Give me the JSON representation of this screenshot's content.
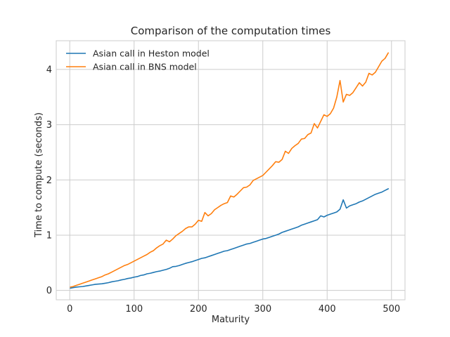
{
  "chart_data": {
    "type": "line",
    "title": "Comparison of the computation times",
    "xlabel": "Maturity",
    "ylabel": "Time to compute (seconds)",
    "xlim": [
      -21,
      521
    ],
    "ylim": [
      -0.17,
      4.52
    ],
    "xticks": [
      0,
      100,
      200,
      300,
      400,
      500
    ],
    "yticks": [
      0,
      1,
      2,
      3,
      4
    ],
    "grid": true,
    "legend_position": "top-left",
    "series": [
      {
        "name": "Asian call in Heston model",
        "color": "#1f77b4",
        "x": [
          1,
          5,
          10,
          15,
          20,
          25,
          30,
          35,
          40,
          45,
          50,
          55,
          60,
          65,
          70,
          75,
          80,
          85,
          90,
          95,
          100,
          105,
          110,
          115,
          120,
          125,
          130,
          135,
          140,
          145,
          150,
          155,
          160,
          165,
          170,
          175,
          180,
          185,
          190,
          195,
          200,
          205,
          210,
          215,
          220,
          225,
          230,
          235,
          240,
          245,
          250,
          255,
          260,
          265,
          270,
          275,
          280,
          285,
          290,
          295,
          300,
          305,
          310,
          315,
          320,
          325,
          330,
          335,
          340,
          345,
          350,
          355,
          360,
          365,
          370,
          375,
          380,
          385,
          390,
          395,
          400,
          405,
          410,
          415,
          420,
          425,
          430,
          435,
          440,
          445,
          450,
          455,
          460,
          465,
          470,
          475,
          480,
          485,
          490,
          495
        ],
        "y": [
          0.04,
          0.05,
          0.06,
          0.065,
          0.07,
          0.08,
          0.09,
          0.1,
          0.11,
          0.115,
          0.12,
          0.13,
          0.14,
          0.155,
          0.165,
          0.175,
          0.19,
          0.2,
          0.215,
          0.225,
          0.24,
          0.25,
          0.27,
          0.28,
          0.3,
          0.31,
          0.325,
          0.34,
          0.35,
          0.365,
          0.38,
          0.4,
          0.43,
          0.435,
          0.45,
          0.47,
          0.49,
          0.505,
          0.52,
          0.54,
          0.56,
          0.58,
          0.59,
          0.61,
          0.63,
          0.65,
          0.67,
          0.69,
          0.71,
          0.72,
          0.74,
          0.76,
          0.78,
          0.8,
          0.82,
          0.84,
          0.85,
          0.87,
          0.89,
          0.91,
          0.93,
          0.94,
          0.96,
          0.98,
          1.0,
          1.02,
          1.05,
          1.07,
          1.09,
          1.11,
          1.13,
          1.15,
          1.18,
          1.2,
          1.22,
          1.24,
          1.26,
          1.28,
          1.35,
          1.33,
          1.36,
          1.38,
          1.4,
          1.42,
          1.47,
          1.64,
          1.49,
          1.53,
          1.55,
          1.57,
          1.6,
          1.62,
          1.65,
          1.68,
          1.71,
          1.74,
          1.76,
          1.78,
          1.81,
          1.84
        ]
      },
      {
        "name": "Asian call in BNS model",
        "color": "#ff7f0e",
        "x": [
          1,
          5,
          10,
          15,
          20,
          25,
          30,
          35,
          40,
          45,
          50,
          55,
          60,
          65,
          70,
          75,
          80,
          85,
          90,
          95,
          100,
          105,
          110,
          115,
          120,
          125,
          130,
          135,
          140,
          145,
          150,
          155,
          160,
          165,
          170,
          175,
          180,
          185,
          190,
          195,
          200,
          205,
          210,
          215,
          220,
          225,
          230,
          235,
          240,
          245,
          250,
          255,
          260,
          265,
          270,
          275,
          280,
          285,
          290,
          295,
          300,
          305,
          310,
          315,
          320,
          325,
          330,
          335,
          340,
          345,
          350,
          355,
          360,
          365,
          370,
          375,
          380,
          385,
          390,
          395,
          400,
          405,
          410,
          415,
          420,
          425,
          430,
          435,
          440,
          445,
          450,
          455,
          460,
          465,
          470,
          475,
          480,
          485,
          490,
          495
        ],
        "y": [
          0.06,
          0.07,
          0.09,
          0.11,
          0.13,
          0.15,
          0.17,
          0.19,
          0.21,
          0.23,
          0.25,
          0.28,
          0.3,
          0.33,
          0.36,
          0.39,
          0.42,
          0.45,
          0.47,
          0.5,
          0.53,
          0.56,
          0.59,
          0.62,
          0.65,
          0.69,
          0.72,
          0.77,
          0.81,
          0.84,
          0.91,
          0.88,
          0.93,
          0.99,
          1.03,
          1.07,
          1.12,
          1.15,
          1.15,
          1.2,
          1.27,
          1.25,
          1.41,
          1.35,
          1.39,
          1.46,
          1.5,
          1.54,
          1.57,
          1.59,
          1.71,
          1.69,
          1.74,
          1.8,
          1.86,
          1.87,
          1.91,
          1.99,
          2.02,
          2.05,
          2.08,
          2.14,
          2.2,
          2.26,
          2.33,
          2.32,
          2.37,
          2.52,
          2.48,
          2.57,
          2.62,
          2.66,
          2.74,
          2.75,
          2.82,
          2.85,
          3.02,
          2.94,
          3.06,
          3.18,
          3.15,
          3.2,
          3.3,
          3.5,
          3.8,
          3.41,
          3.55,
          3.53,
          3.58,
          3.67,
          3.76,
          3.7,
          3.77,
          3.93,
          3.9,
          3.95,
          4.05,
          4.15,
          4.2,
          4.3
        ]
      }
    ]
  }
}
